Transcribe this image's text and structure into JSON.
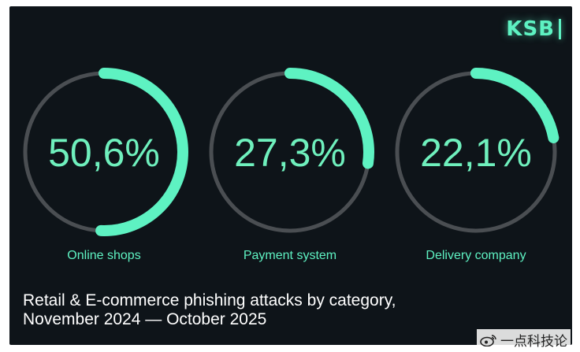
{
  "brand": {
    "logo_text": "KSB"
  },
  "chart_data": {
    "type": "pie",
    "caption_line1": "Retail & E-commerce phishing attacks by category,",
    "caption_line2": "November 2024 — October 2025",
    "slices": [
      {
        "label": "Online shops",
        "value": 50.6,
        "display": "50,6%"
      },
      {
        "label": "Payment system",
        "value": 27.3,
        "display": "27,3%"
      },
      {
        "label": "Delivery company",
        "value": 22.1,
        "display": "22,1%"
      }
    ],
    "colors": {
      "accent": "#5ef2c2",
      "track": "#4a4e52",
      "background": "#0e1419"
    }
  },
  "watermark": {
    "icon": "weibo-icon",
    "text": "一点科技论"
  }
}
